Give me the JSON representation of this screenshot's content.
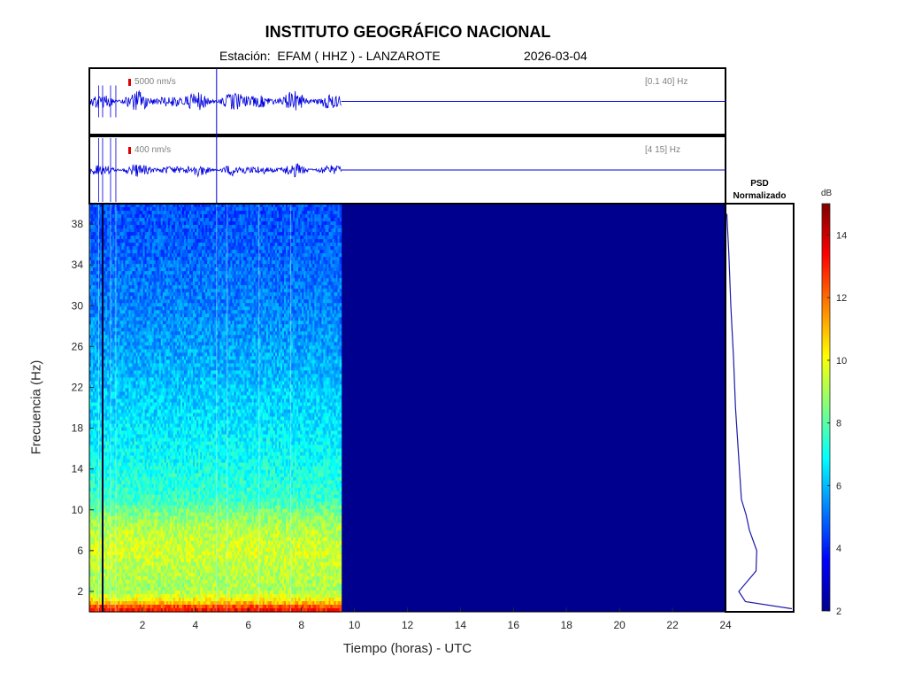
{
  "header": {
    "title": "INSTITUTO GEOGRÁFICO NACIONAL",
    "station": "Estación:  EFAM ( HHZ ) - LANZAROTE",
    "date": "2026-03-04"
  },
  "traces": [
    {
      "scale_label": "5000 nm/s",
      "band_label": "[0.1 40] Hz"
    },
    {
      "scale_label": "400 nm/s",
      "band_label": "[4 15] Hz"
    }
  ],
  "colors": {
    "trace": "#0000dd",
    "frame": "#000000",
    "empty_spectrogram": "#00008f",
    "scale_marker": "#e00000",
    "psd_line": "#1a1aaa"
  },
  "chart_data": [
    {
      "type": "heatmap",
      "name": "spectrogram",
      "xlabel": "Tiempo (horas) - UTC",
      "ylabel": "Frecuencia  (Hz)",
      "xlim": [
        0,
        24
      ],
      "ylim": [
        0,
        40
      ],
      "xticks": [
        2,
        4,
        6,
        8,
        10,
        12,
        14,
        16,
        18,
        20,
        22,
        24
      ],
      "yticks": [
        2,
        6,
        10,
        14,
        18,
        22,
        26,
        30,
        34,
        38
      ],
      "data_end_hour": 9.5,
      "colormap": "jet",
      "grid": false,
      "frequency_profile_db": [
        {
          "f": 0,
          "db": 13.5
        },
        {
          "f": 0.5,
          "db": 12.5
        },
        {
          "f": 1,
          "db": 10.5
        },
        {
          "f": 2,
          "db": 9.0
        },
        {
          "f": 4,
          "db": 9.2
        },
        {
          "f": 6,
          "db": 9.6
        },
        {
          "f": 8,
          "db": 9.2
        },
        {
          "f": 9.5,
          "db": 8.6
        },
        {
          "f": 11,
          "db": 7.6
        },
        {
          "f": 15,
          "db": 7.0
        },
        {
          "f": 20,
          "db": 6.4
        },
        {
          "f": 25,
          "db": 5.8
        },
        {
          "f": 30,
          "db": 5.3
        },
        {
          "f": 35,
          "db": 4.9
        },
        {
          "f": 40,
          "db": 4.6
        }
      ],
      "vertical_event_lines_hours": [
        0.35,
        0.5,
        0.8,
        1.0,
        4.8,
        5.2,
        6.4,
        7.6
      ]
    },
    {
      "type": "line",
      "name": "psd",
      "title": "PSD\nNormalizado",
      "points": [
        {
          "f": 0.3,
          "v": 1.0
        },
        {
          "f": 1,
          "v": 0.3
        },
        {
          "f": 2,
          "v": 0.2
        },
        {
          "f": 4,
          "v": 0.46
        },
        {
          "f": 6,
          "v": 0.47
        },
        {
          "f": 8,
          "v": 0.36
        },
        {
          "f": 9.5,
          "v": 0.31
        },
        {
          "f": 11,
          "v": 0.24
        },
        {
          "f": 15,
          "v": 0.2
        },
        {
          "f": 20,
          "v": 0.15
        },
        {
          "f": 25,
          "v": 0.12
        },
        {
          "f": 30,
          "v": 0.08
        },
        {
          "f": 35,
          "v": 0.05
        },
        {
          "f": 39,
          "v": 0.02
        }
      ]
    },
    {
      "type": "heatmap",
      "name": "colorbar",
      "label": "dB",
      "range": [
        2,
        15
      ],
      "ticks": [
        2,
        4,
        6,
        8,
        10,
        12,
        14
      ]
    }
  ]
}
